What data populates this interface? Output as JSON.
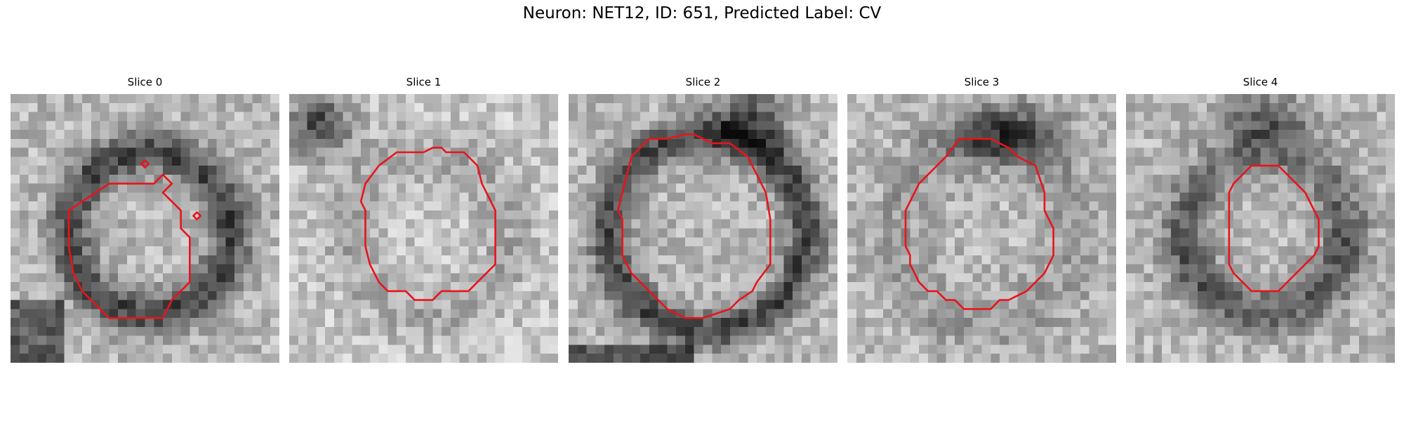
{
  "title": "Neuron: NET12, ID: 651, Predicted Label: CV",
  "contour_color": "#e8141c",
  "panels": [
    {
      "label": "Slice 0",
      "ring": "dark-ring",
      "seed": 11
    },
    {
      "label": "Slice 1",
      "ring": "dark-blob-top-left",
      "seed": 23
    },
    {
      "label": "Slice 2",
      "ring": "dark-ring",
      "seed": 37
    },
    {
      "label": "Slice 3",
      "ring": "dark-top",
      "seed": 41
    },
    {
      "label": "Slice 4",
      "ring": "dark-ring",
      "seed": 59
    }
  ]
}
